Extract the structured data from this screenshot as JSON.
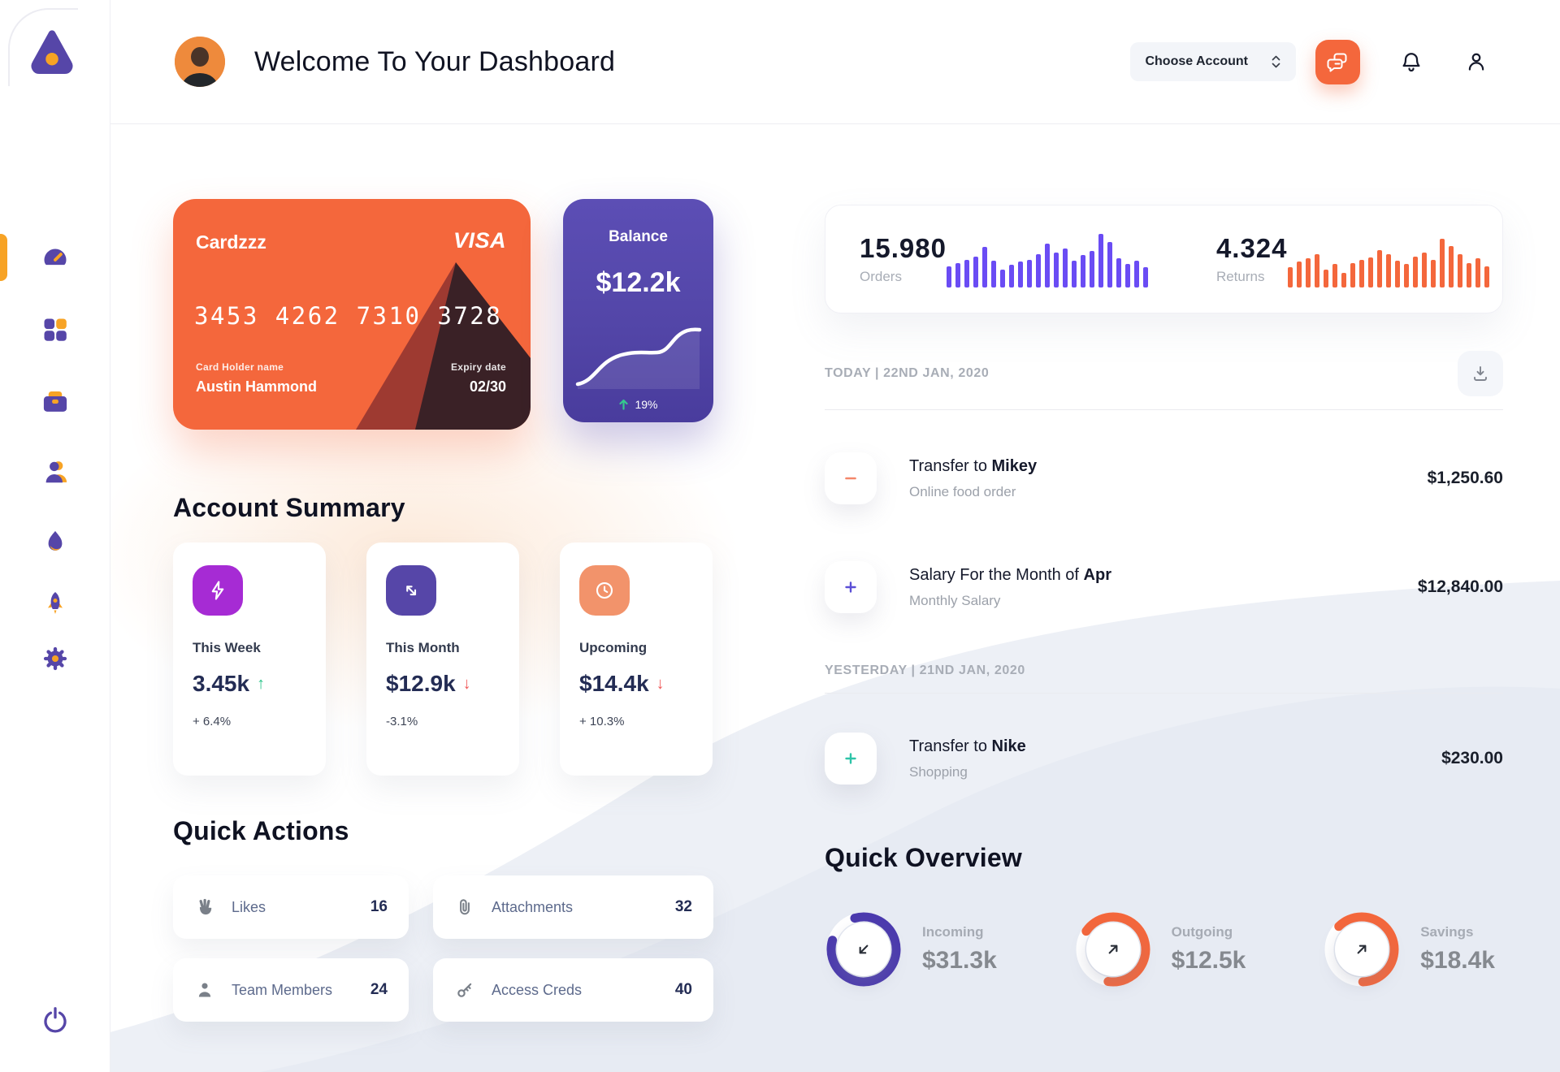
{
  "colors": {
    "orange": "#F4673C",
    "amber": "#F7A325",
    "purple": "#5646A8",
    "bar_purple": "#6A4CF4",
    "green": "#2BC48A",
    "red": "#F05A5A",
    "navy": "#232C54"
  },
  "sidebar": {
    "items": [
      {
        "id": "dashboard",
        "icon": "speedometer-icon",
        "active": true
      },
      {
        "id": "apps",
        "icon": "grid-icon",
        "active": false
      },
      {
        "id": "portfolio",
        "icon": "briefcase-icon",
        "active": false
      },
      {
        "id": "members",
        "icon": "user-icon",
        "active": false
      },
      {
        "id": "trending",
        "icon": "flame-icon",
        "active": false
      },
      {
        "id": "launch",
        "icon": "rocket-icon",
        "active": false
      },
      {
        "id": "settings",
        "icon": "gear-icon",
        "active": false
      }
    ],
    "footer_item": {
      "id": "logout",
      "icon": "power-icon"
    }
  },
  "header": {
    "title": "Welcome To Your Dashboard",
    "account_selector": "Choose Account"
  },
  "credit_card": {
    "name": "Cardzzz",
    "network": "VISA",
    "number": "3453 4262 7310 3728",
    "holder_label": "Card Holder name",
    "holder_name": "Austin Hammond",
    "expiry_label": "Expiry date",
    "expiry": "02/30"
  },
  "balance_card": {
    "title": "Balance",
    "amount": "$12.2k",
    "change": "19%",
    "trend": "up"
  },
  "stats": {
    "orders": {
      "value": "15.980",
      "label": "Orders",
      "bar_color": "#6A4CF4",
      "bars": [
        26,
        30,
        34,
        38,
        50,
        33,
        22,
        28,
        32,
        34,
        41,
        54,
        43,
        48,
        33,
        40,
        45,
        66,
        56,
        36,
        29,
        33,
        25
      ]
    },
    "returns": {
      "value": "4.324",
      "label": "Returns",
      "bar_color": "#F4673C",
      "bars": [
        25,
        32,
        36,
        41,
        22,
        29,
        18,
        30,
        34,
        37,
        46,
        41,
        33,
        29,
        38,
        43,
        34,
        60,
        51,
        41,
        30,
        36,
        26
      ]
    }
  },
  "transactions": {
    "sections": [
      {
        "date_label": "TODAY | 22ND JAN, 2020",
        "rows": [
          {
            "icon": "minus",
            "icon_color": "#F4876A",
            "title_prefix": "Transfer to ",
            "title_bold": "Mikey",
            "subtitle": "Online food order",
            "amount": "$1,250.60"
          },
          {
            "icon": "plus",
            "icon_color": "#5B4FD6",
            "title_prefix": "Salary For the Month of ",
            "title_bold": "Apr",
            "subtitle": "Monthly Salary",
            "amount": "$12,840.00"
          }
        ]
      },
      {
        "date_label": "YESTERDAY | 21ND JAN, 2020",
        "rows": [
          {
            "icon": "plus",
            "icon_color": "#2EC4A8",
            "title_prefix": "Transfer to ",
            "title_bold": "Nike",
            "subtitle": "Shopping",
            "amount": "$230.00"
          }
        ]
      }
    ]
  },
  "account_summary": {
    "heading": "Account Summary",
    "cards": [
      {
        "icon": "lightning-icon",
        "icon_bg": "#A62BD4",
        "label": "This Week",
        "value": "3.45k",
        "arrow": "↑",
        "arrow_color": "#2BC48A",
        "delta": "+ 6.4%"
      },
      {
        "icon": "swap-arrows-icon",
        "icon_bg": "#5646A8",
        "label": "This Month",
        "value": "$12.9k",
        "arrow": "↓",
        "arrow_color": "#F05A5A",
        "delta": "-3.1%"
      },
      {
        "icon": "clock-icon",
        "icon_bg": "#F2936B",
        "label": "Upcoming",
        "value": "$14.4k",
        "arrow": "↓",
        "arrow_color": "#F05A5A",
        "delta": "+ 10.3%"
      }
    ]
  },
  "quick_actions": {
    "heading": "Quick Actions",
    "items": [
      {
        "icon": "hand-icon",
        "label": "Likes",
        "count": "16"
      },
      {
        "icon": "paperclip-icon",
        "label": "Attachments",
        "count": "32"
      },
      {
        "icon": "member-icon",
        "label": "Team Members",
        "count": "24"
      },
      {
        "icon": "key-icon",
        "label": "Access Creds",
        "count": "40"
      }
    ]
  },
  "quick_overview": {
    "heading": "Quick Overview",
    "items": [
      {
        "label": "Incoming",
        "value": "$31.3k",
        "percent": 84,
        "color": "#4B3AAE",
        "rotation": 254,
        "arrow": "down-left"
      },
      {
        "label": "Outgoing",
        "value": "$12.5k",
        "percent": 68,
        "color": "#F4673C",
        "rotation": 214,
        "arrow": "up-right"
      },
      {
        "label": "Savings",
        "value": "$18.4k",
        "percent": 62,
        "color": "#F4673C",
        "rotation": 225,
        "arrow": "up-right"
      }
    ]
  }
}
